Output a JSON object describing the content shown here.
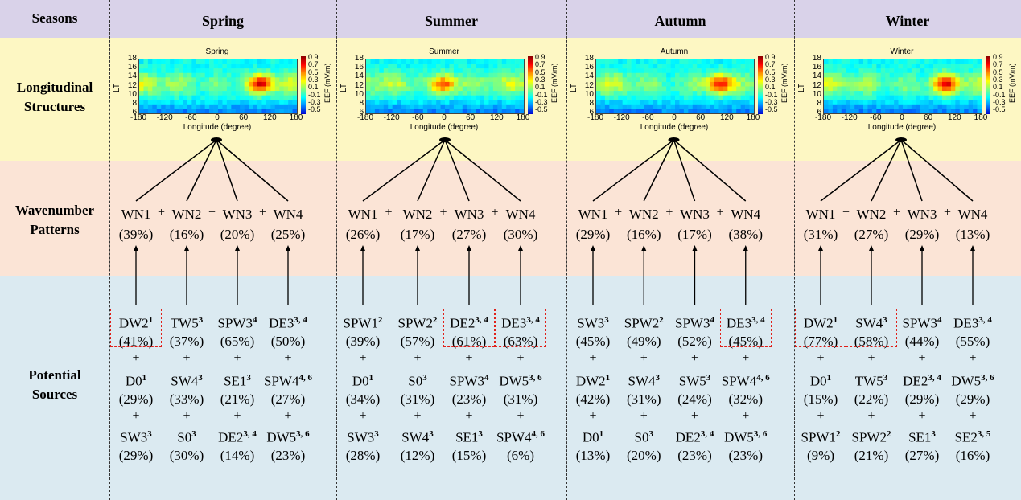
{
  "header": {
    "seasons_label": "Seasons"
  },
  "row_labels": {
    "longitudinal": [
      "Longitudinal",
      "Structures"
    ],
    "wavenumber": [
      "Wavenumber",
      "Patterns"
    ],
    "sources": [
      "Potential",
      "Sources"
    ]
  },
  "seasons": [
    {
      "name": "Spring",
      "panel_title": "Spring",
      "wavenumbers": [
        {
          "label": "WN1",
          "pct": "(39%)"
        },
        {
          "label": "WN2",
          "pct": "(16%)"
        },
        {
          "label": "WN3",
          "pct": "(20%)"
        },
        {
          "label": "WN4",
          "pct": "(25%)"
        }
      ],
      "sources": [
        [
          {
            "name": "DW2",
            "sup": "1",
            "pct": "(41%)",
            "hl": true
          },
          {
            "name": "D0",
            "sup": "1",
            "pct": "(29%)"
          },
          {
            "name": "SW3",
            "sup": "3",
            "pct": "(29%)"
          }
        ],
        [
          {
            "name": "TW5",
            "sup": "3",
            "pct": "(37%)"
          },
          {
            "name": "SW4",
            "sup": "3",
            "pct": "(33%)"
          },
          {
            "name": "S0",
            "sup": "3",
            "pct": "(30%)"
          }
        ],
        [
          {
            "name": "SPW3",
            "sup": "4",
            "pct": "(65%)"
          },
          {
            "name": "SE1",
            "sup": "3",
            "pct": "(21%)"
          },
          {
            "name": "DE2",
            "sup": "3, 4",
            "pct": "(14%)"
          }
        ],
        [
          {
            "name": "DE3",
            "sup": "3, 4",
            "pct": "(50%)"
          },
          {
            "name": "SPW4",
            "sup": "4, 6",
            "pct": "(27%)"
          },
          {
            "name": "DW5",
            "sup": "3, 6",
            "pct": "(23%)"
          }
        ]
      ]
    },
    {
      "name": "Summer",
      "panel_title": "Summer",
      "wavenumbers": [
        {
          "label": "WN1",
          "pct": "(26%)"
        },
        {
          "label": "WN2",
          "pct": "(17%)"
        },
        {
          "label": "WN3",
          "pct": "(27%)"
        },
        {
          "label": "WN4",
          "pct": "(30%)"
        }
      ],
      "sources": [
        [
          {
            "name": "SPW1",
            "sup": "2",
            "pct": "(39%)"
          },
          {
            "name": "D0",
            "sup": "1",
            "pct": "(34%)"
          },
          {
            "name": "SW3",
            "sup": "3",
            "pct": "(28%)"
          }
        ],
        [
          {
            "name": "SPW2",
            "sup": "2",
            "pct": "(57%)"
          },
          {
            "name": "S0",
            "sup": "3",
            "pct": "(31%)"
          },
          {
            "name": "SW4",
            "sup": "3",
            "pct": "(12%)"
          }
        ],
        [
          {
            "name": "DE2",
            "sup": "3, 4",
            "pct": "(61%)",
            "hl": true
          },
          {
            "name": "SPW3",
            "sup": "4",
            "pct": "(23%)"
          },
          {
            "name": "SE1",
            "sup": "3",
            "pct": "(15%)"
          }
        ],
        [
          {
            "name": "DE3",
            "sup": "3, 4",
            "pct": "(63%)",
            "hl": true
          },
          {
            "name": "DW5",
            "sup": "3, 6",
            "pct": "(31%)"
          },
          {
            "name": "SPW4",
            "sup": "4, 6",
            "pct": "(6%)"
          }
        ]
      ]
    },
    {
      "name": "Autumn",
      "panel_title": "Autumn",
      "wavenumbers": [
        {
          "label": "WN1",
          "pct": "(29%)"
        },
        {
          "label": "WN2",
          "pct": "(16%)"
        },
        {
          "label": "WN3",
          "pct": "(17%)"
        },
        {
          "label": "WN4",
          "pct": "(38%)"
        }
      ],
      "sources": [
        [
          {
            "name": "SW3",
            "sup": "3",
            "pct": "(45%)"
          },
          {
            "name": "DW2",
            "sup": "1",
            "pct": "(42%)"
          },
          {
            "name": "D0",
            "sup": "1",
            "pct": "(13%)"
          }
        ],
        [
          {
            "name": "SPW2",
            "sup": "2",
            "pct": "(49%)"
          },
          {
            "name": "SW4",
            "sup": "3",
            "pct": "(31%)"
          },
          {
            "name": "S0",
            "sup": "3",
            "pct": "(20%)"
          }
        ],
        [
          {
            "name": "SPW3",
            "sup": "4",
            "pct": "(52%)"
          },
          {
            "name": "SW5",
            "sup": "3",
            "pct": "(24%)"
          },
          {
            "name": "DE2",
            "sup": "3, 4",
            "pct": "(23%)"
          }
        ],
        [
          {
            "name": "DE3",
            "sup": "3, 4",
            "pct": "(45%)",
            "hl": true
          },
          {
            "name": "SPW4",
            "sup": "4, 6",
            "pct": "(32%)"
          },
          {
            "name": "DW5",
            "sup": "3, 6",
            "pct": "(23%)"
          }
        ]
      ]
    },
    {
      "name": "Winter",
      "panel_title": "Winter",
      "wavenumbers": [
        {
          "label": "WN1",
          "pct": "(31%)"
        },
        {
          "label": "WN2",
          "pct": "(27%)"
        },
        {
          "label": "WN3",
          "pct": "(29%)"
        },
        {
          "label": "WN4",
          "pct": "(13%)"
        }
      ],
      "sources": [
        [
          {
            "name": "DW2",
            "sup": "1",
            "pct": "(77%)",
            "hl": true
          },
          {
            "name": "D0",
            "sup": "1",
            "pct": "(15%)"
          },
          {
            "name": "SPW1",
            "sup": "2",
            "pct": "(9%)"
          }
        ],
        [
          {
            "name": "SW4",
            "sup": "3",
            "pct": "(58%)",
            "hl": true
          },
          {
            "name": "TW5",
            "sup": "3",
            "pct": "(22%)"
          },
          {
            "name": "SPW2",
            "sup": "2",
            "pct": "(21%)"
          }
        ],
        [
          {
            "name": "SPW3",
            "sup": "4",
            "pct": "(44%)"
          },
          {
            "name": "DE2",
            "sup": "3, 4",
            "pct": "(29%)"
          },
          {
            "name": "SE1",
            "sup": "3",
            "pct": "(27%)"
          }
        ],
        [
          {
            "name": "DE3",
            "sup": "3, 4",
            "pct": "(55%)"
          },
          {
            "name": "DW5",
            "sup": "3, 6",
            "pct": "(29%)"
          },
          {
            "name": "SE2",
            "sup": "3, 5",
            "pct": "(16%)"
          }
        ]
      ]
    }
  ],
  "plus_sign": "+",
  "panel_axes": {
    "xlabel": "Longitude (degree)",
    "ylabel": "LT",
    "xticks": [
      "-180",
      "-120",
      "-60",
      "0",
      "60",
      "120",
      "180"
    ],
    "yticks": [
      "18",
      "16",
      "14",
      "12",
      "10",
      "8",
      "6"
    ],
    "colorbar_label": "EEF (mV/m)",
    "colorbar_ticks": [
      "0.9",
      "0.7",
      "0.5",
      "0.3",
      "0.1",
      "-0.1",
      "-0.3",
      "-0.5"
    ]
  },
  "colors": {
    "highlight": "#e0201a",
    "header_bg": "#d9d2e9",
    "long_bg": "#fdf7c3",
    "wave_bg": "#fbe4d6",
    "src_bg": "#dbeaf1"
  }
}
